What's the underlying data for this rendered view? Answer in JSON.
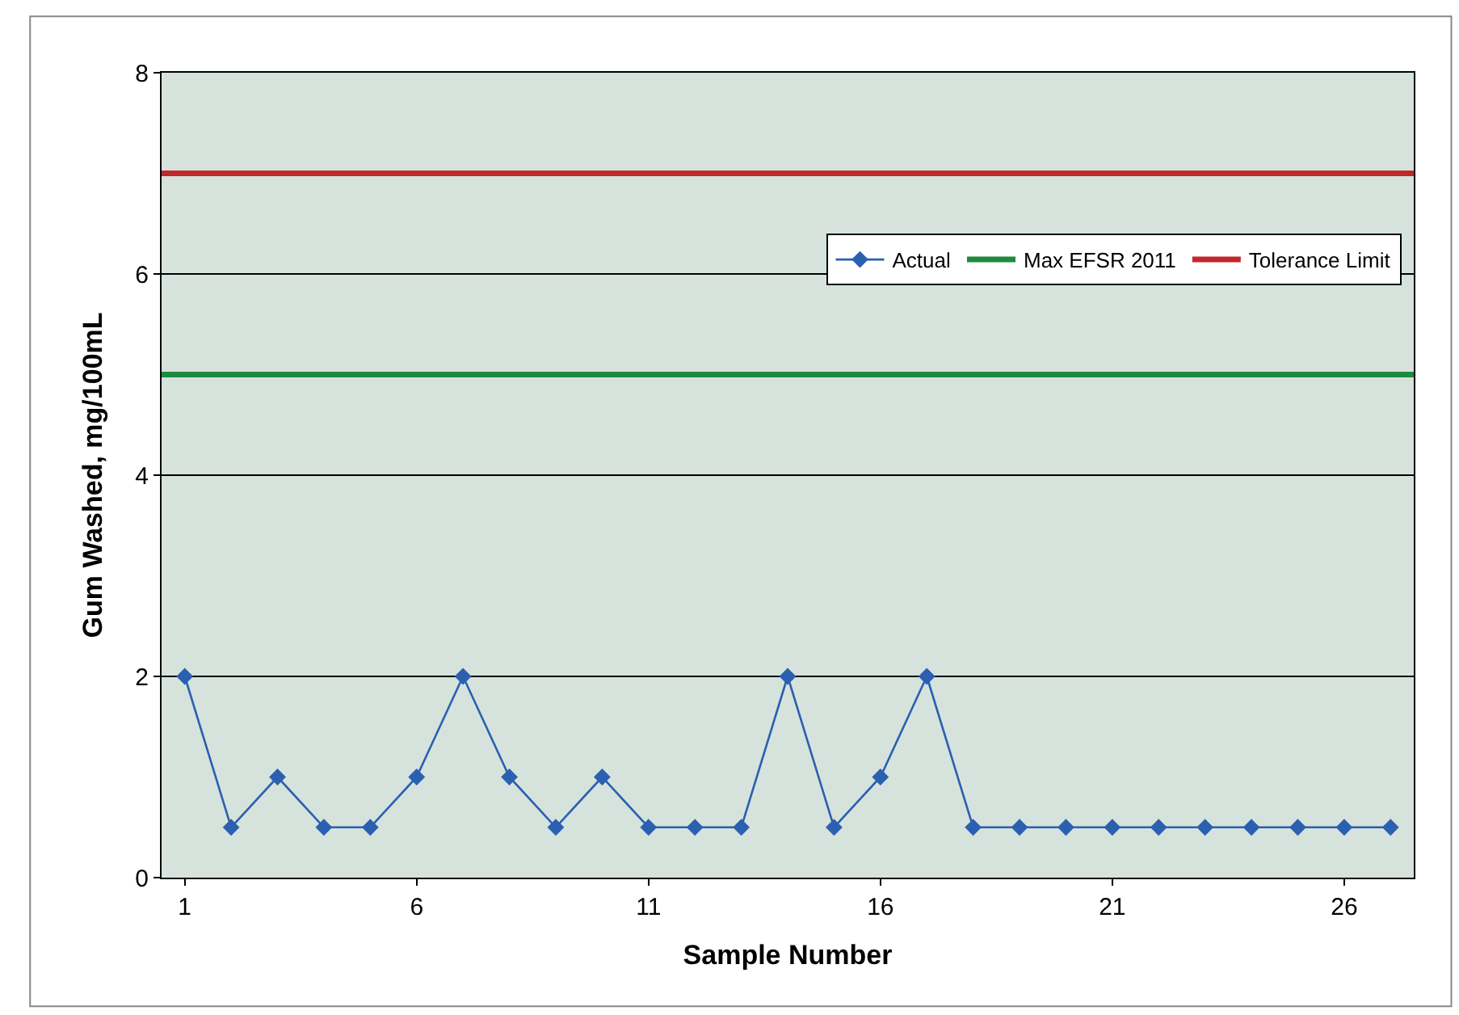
{
  "chart_data": {
    "type": "line",
    "xlabel": "Sample Number",
    "ylabel": "Gum Washed, mg/100mL",
    "x": [
      1,
      2,
      3,
      4,
      5,
      6,
      7,
      8,
      9,
      10,
      11,
      12,
      13,
      14,
      15,
      16,
      17,
      18,
      19,
      20,
      21,
      22,
      23,
      24,
      25,
      26,
      27
    ],
    "series": [
      {
        "name": "Actual",
        "color": "#2b5fb0",
        "marker": "diamond",
        "values": [
          2,
          0.5,
          1,
          0.5,
          0.5,
          1,
          2,
          1,
          0.5,
          1,
          0.5,
          0.5,
          0.5,
          2,
          0.5,
          1,
          2,
          0.5,
          0.5,
          0.5,
          0.5,
          0.5,
          0.5,
          0.5,
          0.5,
          0.5,
          0.5
        ]
      }
    ],
    "ref_lines": [
      {
        "axis": "y",
        "value": 5,
        "label": "Max EFSR 2011",
        "color": "#1e8a3e"
      },
      {
        "axis": "y",
        "value": 7,
        "label": "Tolerance Limit",
        "color": "#c1272d"
      }
    ],
    "xlim": [
      0.5,
      27.5
    ],
    "xticks": [
      1,
      6,
      11,
      16,
      21,
      26
    ],
    "ylim": [
      0,
      8
    ],
    "yticks": [
      0,
      2,
      4,
      6,
      8
    ],
    "grid": "y",
    "legend": "top right"
  }
}
